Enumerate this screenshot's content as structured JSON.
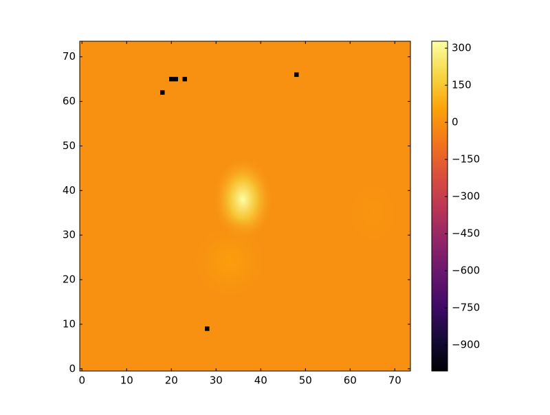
{
  "chart_data": {
    "type": "heatmap",
    "colormap": "inferno",
    "xlim": [
      -0.5,
      73.5
    ],
    "ylim": [
      -0.5,
      73.5
    ],
    "xticks": [
      0,
      10,
      20,
      30,
      40,
      50,
      60,
      70
    ],
    "yticks": [
      0,
      10,
      20,
      30,
      40,
      50,
      60,
      70
    ],
    "clim": [
      -1005,
      328
    ],
    "cticks": [
      300,
      150,
      0,
      {
        "value": -150,
        "label": "−150"
      },
      {
        "value": -300,
        "label": "−300"
      },
      {
        "value": -450,
        "label": "−450"
      },
      {
        "value": -600,
        "label": "−600"
      },
      {
        "value": -750,
        "label": "−750"
      },
      {
        "value": -900,
        "label": "−900"
      }
    ],
    "background": 0,
    "blobs": [
      {
        "x": 36,
        "y": 38,
        "sx": 3.5,
        "sy": 5,
        "peak": 328
      },
      {
        "x": 33,
        "y": 24,
        "sx": 5,
        "sy": 5,
        "peak": 40
      },
      {
        "x": 65,
        "y": 35,
        "sx": 4,
        "sy": 5,
        "peak": 15
      }
    ],
    "pixels": [
      {
        "x": 18,
        "y": 62,
        "value": -1005
      },
      {
        "x": 20,
        "y": 65,
        "value": -1005
      },
      {
        "x": 21,
        "y": 65,
        "value": -1005
      },
      {
        "x": 23,
        "y": 65,
        "value": -1005
      },
      {
        "x": 48,
        "y": 66,
        "value": -1005
      },
      {
        "x": 28,
        "y": 9,
        "value": -1005
      }
    ]
  }
}
